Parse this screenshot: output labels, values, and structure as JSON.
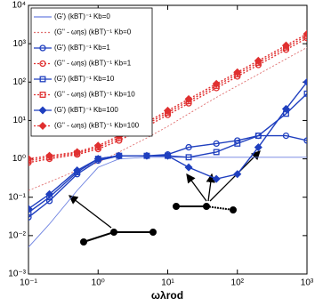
{
  "chart_data": {
    "type": "line",
    "x_label": "ωλrod",
    "log_x": true,
    "log_y": true,
    "x": [
      0.1,
      0.2,
      0.5,
      1,
      2,
      5,
      10,
      20,
      50,
      100,
      200,
      500,
      1000
    ],
    "xlim": [
      0.1,
      1000
    ],
    "ylim": [
      0.001,
      10000
    ],
    "xticks": [
      {
        "value": 0.1,
        "label": "10⁻¹"
      },
      {
        "value": 1,
        "label": "10⁰"
      },
      {
        "value": 10,
        "label": "10¹"
      },
      {
        "value": 100,
        "label": "10²"
      },
      {
        "value": 1000,
        "label": "10³"
      }
    ],
    "yticks": [
      {
        "value": 0.001,
        "label": "10⁻³"
      },
      {
        "value": 0.01,
        "label": "10⁻²"
      },
      {
        "value": 0.1,
        "label": "10⁻¹"
      },
      {
        "value": 1,
        "label": "10⁰"
      },
      {
        "value": 10,
        "label": "10¹"
      },
      {
        "value": 100,
        "label": "10²"
      },
      {
        "value": 1000,
        "label": "10³"
      },
      {
        "value": 10000,
        "label": "10⁴"
      }
    ],
    "legend": "upper left",
    "series": [
      {
        "name": "(G') (kBT)⁻¹ Kb=0",
        "color": "#6a7fe0",
        "marker": "none",
        "dash": "solid",
        "values": [
          0.005,
          0.02,
          0.15,
          0.6,
          1.0,
          1.1,
          1.1,
          1.1,
          1.1,
          1.1,
          1.1,
          1.1,
          1.1
        ]
      },
      {
        "name": "(G'' - ωηs) (kBT)⁻¹ Kb=0",
        "color": "#e07070",
        "marker": "none",
        "dash": "dotted",
        "values": [
          0.15,
          0.25,
          0.5,
          0.8,
          1.5,
          3.5,
          7,
          15,
          40,
          80,
          160,
          400,
          800
        ]
      },
      {
        "name": "(G') (kBT)⁻¹ Kb=1",
        "color": "#1f3fbf",
        "marker": "circle",
        "dash": "solid",
        "values": [
          0.03,
          0.08,
          0.4,
          0.9,
          1.2,
          1.2,
          1.3,
          2,
          2.5,
          3,
          4,
          4,
          3
        ]
      },
      {
        "name": "(G'' - ωηs) (kBT)⁻¹ Kb=1",
        "color": "#e03030",
        "marker": "circle",
        "dash": "dotted",
        "values": [
          0.8,
          1,
          1.3,
          1.8,
          3,
          7,
          14,
          28,
          70,
          140,
          280,
          700,
          1400
        ]
      },
      {
        "name": "(G') (kBT)⁻¹ Kb=10",
        "color": "#1f3fbf",
        "marker": "square",
        "dash": "solid",
        "values": [
          0.04,
          0.1,
          0.45,
          1,
          1.2,
          1.2,
          1.2,
          1.1,
          1.5,
          2.5,
          4,
          15,
          50
        ]
      },
      {
        "name": "(G'' - ωηs) (kBT)⁻¹ Kb=10",
        "color": "#e03030",
        "marker": "square",
        "dash": "dotted",
        "values": [
          0.9,
          1.1,
          1.4,
          2,
          3.5,
          8,
          16,
          32,
          80,
          160,
          320,
          800,
          1600
        ]
      },
      {
        "name": "(G') (kBT)⁻¹ Kb=100",
        "color": "#1f3fbf",
        "marker": "diamond",
        "dash": "solid",
        "values": [
          0.05,
          0.12,
          0.5,
          1,
          1.2,
          1.2,
          1.2,
          0.6,
          0.3,
          0.4,
          2,
          20,
          100
        ]
      },
      {
        "name": "(G'' - ωηs) (kBT)⁻¹ Kb=100",
        "color": "#e03030",
        "marker": "diamond",
        "dash": "dotted",
        "values": [
          1,
          1.2,
          1.5,
          2.2,
          4,
          9,
          18,
          36,
          90,
          180,
          360,
          900,
          1800
        ]
      }
    ]
  }
}
